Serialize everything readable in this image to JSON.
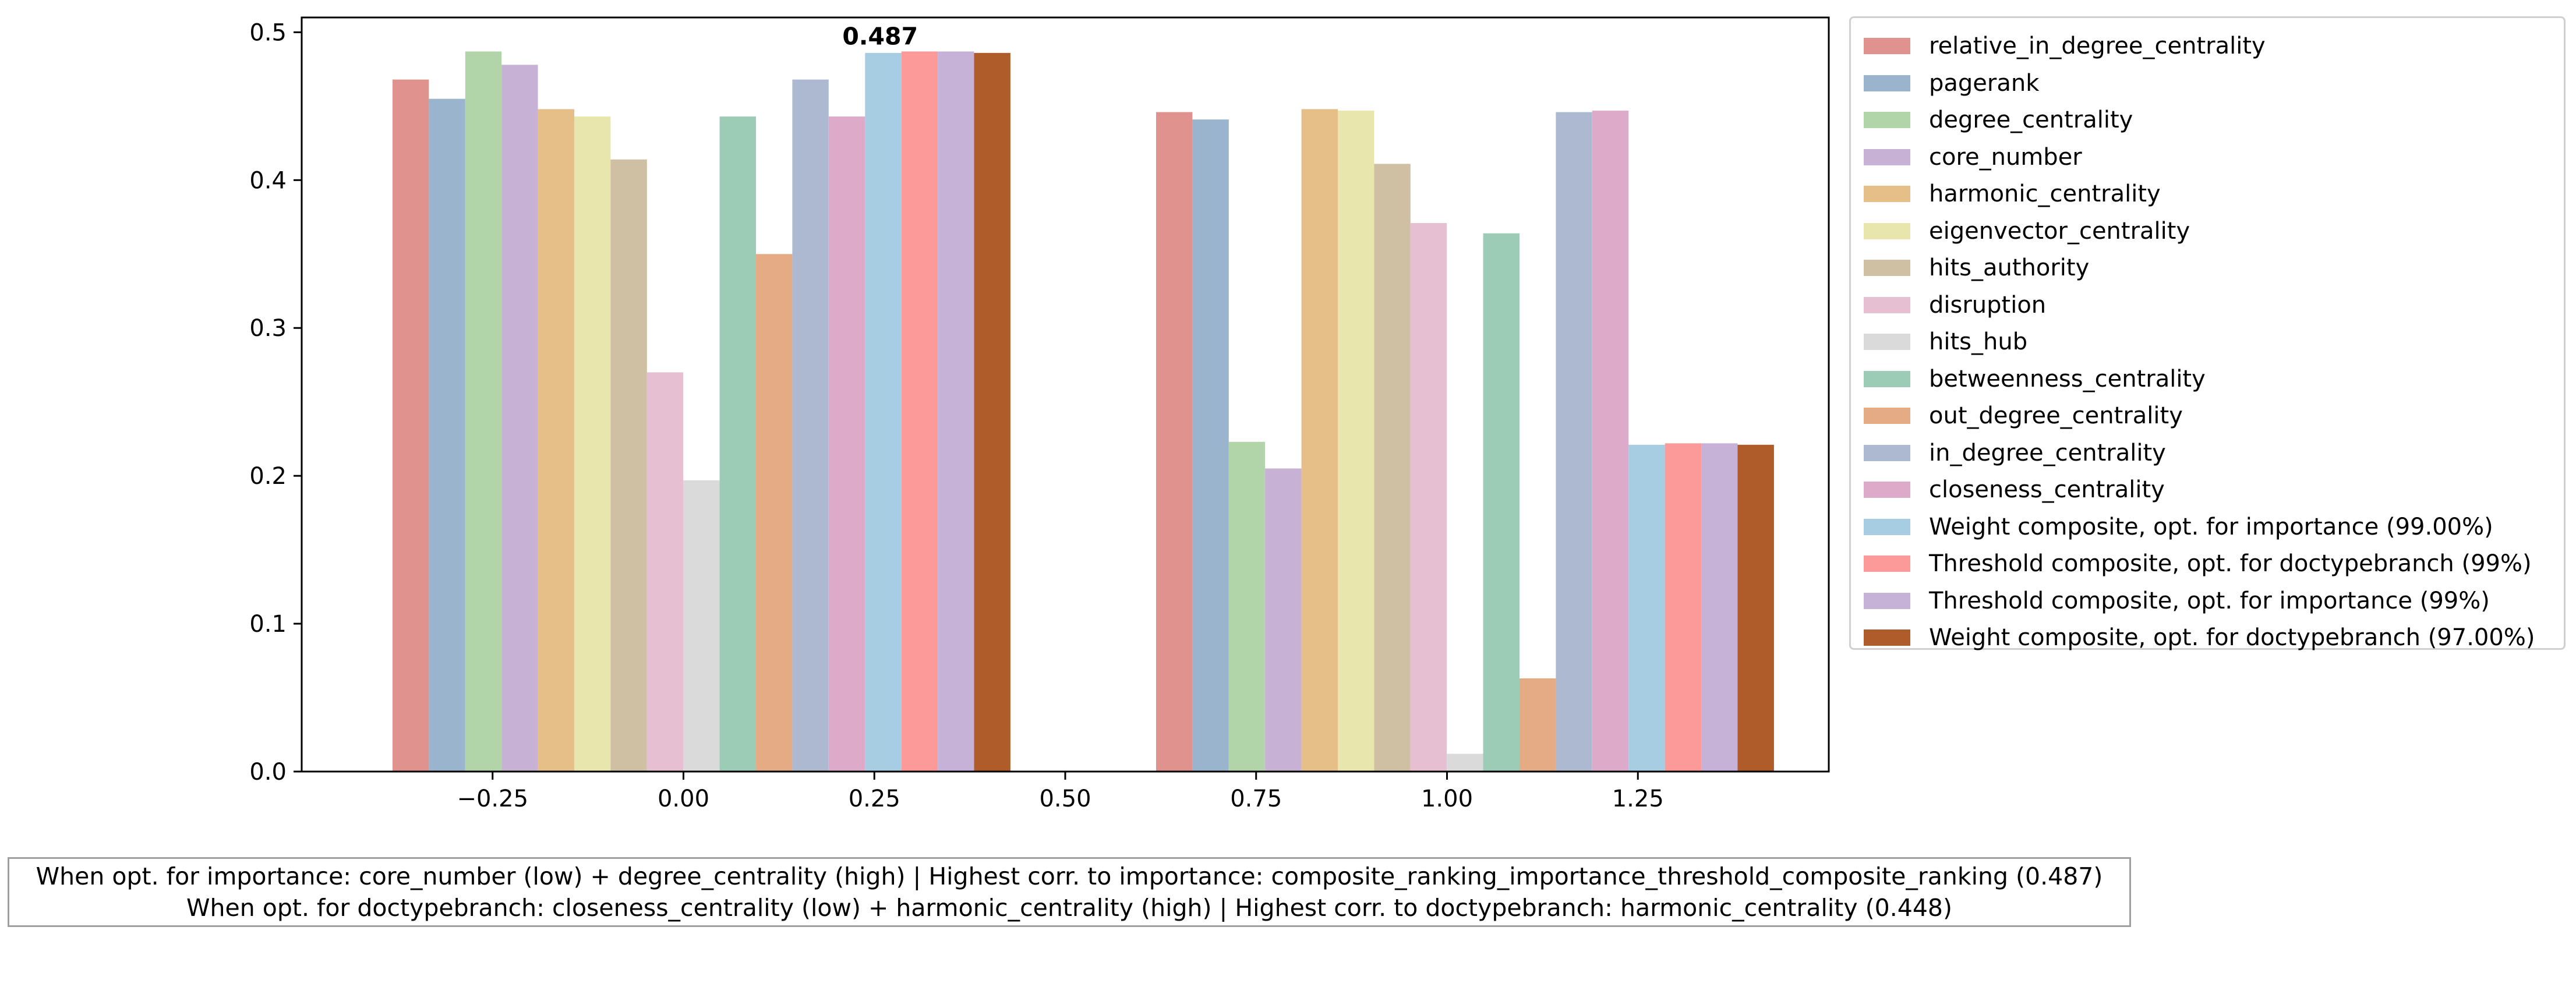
{
  "chart_data": {
    "type": "bar",
    "title": "",
    "xlabel": "",
    "ylabel": "",
    "xlim": [
      -0.5,
      1.5
    ],
    "ylim": [
      0,
      0.51
    ],
    "grid": false,
    "legend_position": "outside-right",
    "bar_width": 0.0476,
    "x_ticks": [
      -0.25,
      0.0,
      0.25,
      0.5,
      0.75,
      1.0,
      1.25
    ],
    "x_tick_labels": [
      "−0.25",
      "0.00",
      "0.25",
      "0.50",
      "0.75",
      "1.00",
      "1.25"
    ],
    "y_ticks": [
      0.0,
      0.1,
      0.2,
      0.3,
      0.4,
      0.5
    ],
    "y_tick_labels": [
      "0.0",
      "0.1",
      "0.2",
      "0.3",
      "0.4",
      "0.5"
    ],
    "group_start_x": [
      -0.381,
      0.619
    ],
    "series": [
      {
        "name": "relative_in_degree_centrality",
        "color": "#e0928e",
        "values": [
          0.468,
          0.446
        ]
      },
      {
        "name": "pagerank",
        "color": "#9ab4cd",
        "values": [
          0.455,
          0.441
        ]
      },
      {
        "name": "degree_centrality",
        "color": "#b2d4a9",
        "values": [
          0.487,
          0.223
        ]
      },
      {
        "name": "core_number",
        "color": "#c7b1d5",
        "values": [
          0.478,
          0.205
        ]
      },
      {
        "name": "harmonic_centrality",
        "color": "#e6bf88",
        "values": [
          0.448,
          0.448
        ]
      },
      {
        "name": "eigenvector_centrality",
        "color": "#e8e6ac",
        "values": [
          0.443,
          0.447
        ]
      },
      {
        "name": "hits_authority",
        "color": "#cfbfa3",
        "values": [
          0.414,
          0.411
        ]
      },
      {
        "name": "disruption",
        "color": "#e6c0d2",
        "values": [
          0.27,
          0.371
        ]
      },
      {
        "name": "hits_hub",
        "color": "#dadada",
        "values": [
          0.197,
          0.012
        ]
      },
      {
        "name": "betweenness_centrality",
        "color": "#9ccbb6",
        "values": [
          0.443,
          0.364
        ]
      },
      {
        "name": "out_degree_centrality",
        "color": "#e5ab85",
        "values": [
          0.35,
          0.063
        ]
      },
      {
        "name": "in_degree_centrality",
        "color": "#adb8d1",
        "values": [
          0.468,
          0.446
        ]
      },
      {
        "name": "closeness_centrality",
        "color": "#deaaca",
        "values": [
          0.443,
          0.447
        ]
      },
      {
        "name": "Weight composite, opt. for importance (99.00%)",
        "color": "#a7cde2",
        "values": [
          0.486,
          0.221
        ]
      },
      {
        "name": "Threshold composite, opt. for doctypebranch (99%)",
        "color": "#fb9a98",
        "values": [
          0.487,
          0.222
        ]
      },
      {
        "name": "Threshold composite, opt. for importance (99%)",
        "color": "#c6b2d6",
        "values": [
          0.487,
          0.222
        ]
      },
      {
        "name": "Weight composite, opt. for doctypebranch (97.00%)",
        "color": "#b05b2a",
        "values": [
          0.486,
          0.221
        ]
      }
    ],
    "annotations": [
      {
        "text": "0.487",
        "x": 0.25,
        "y": 0.487
      }
    ]
  },
  "caption": {
    "line1": "When opt. for importance: core_number (low) + degree_centrality (high) | Highest corr. to importance: composite_ranking_importance_threshold_composite_ranking (0.487)",
    "line2": "When opt. for doctypebranch: closeness_centrality (low) + harmonic_centrality (high) | Highest corr. to doctypebranch: harmonic_centrality (0.448)"
  }
}
